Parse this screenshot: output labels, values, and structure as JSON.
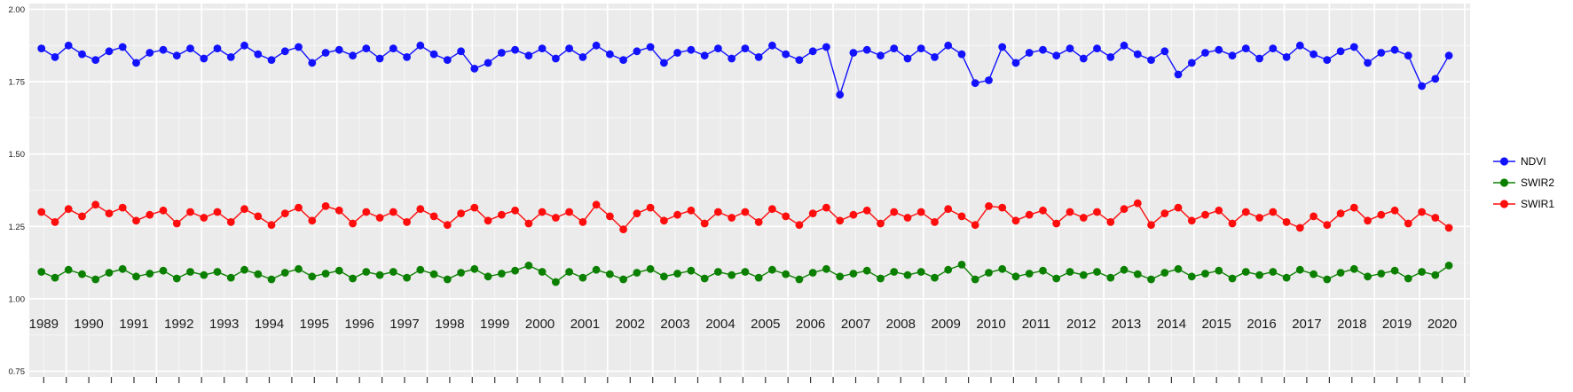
{
  "page": {
    "background": "#FFFFFF"
  },
  "chart_data": {
    "type": "scatter",
    "title": "",
    "xlabel": "",
    "ylabel": "",
    "panel_color": "#EBEBEB",
    "grid_color": "#FFFFFF",
    "axis_text_color": "#1A1A1A",
    "tick_color": "#333333",
    "x_domain": [
      1988.68,
      2020.62
    ],
    "y_domain": [
      0.73,
      2.02
    ],
    "x_ticks": [
      1989,
      1990,
      1991,
      1992,
      1993,
      1994,
      1995,
      1996,
      1997,
      1998,
      1999,
      2000,
      2001,
      2002,
      2003,
      2004,
      2005,
      2006,
      2007,
      2008,
      2009,
      2010,
      2011,
      2012,
      2013,
      2014,
      2015,
      2016,
      2017,
      2018,
      2019,
      2020
    ],
    "y_ticks": [
      {
        "label": "2.00",
        "value": 2.0
      },
      {
        "label": "1.75",
        "value": 1.75
      },
      {
        "label": "1.50",
        "value": 1.5
      },
      {
        "label": "1.25",
        "value": 1.25
      },
      {
        "label": "1.00",
        "value": 1.0
      },
      {
        "label": "0.75",
        "value": 0.75
      }
    ],
    "legend": {
      "position": "right",
      "items": [
        {
          "label": "NDVI",
          "color": "#1212FF"
        },
        {
          "label": "SWIR2",
          "color": "#0B8000"
        },
        {
          "label": "SWIR1",
          "color": "#FF0D0D"
        }
      ]
    },
    "x": [
      1988.95,
      1989.25,
      1989.55,
      1989.85,
      1990.15,
      1990.45,
      1990.75,
      1991.05,
      1991.35,
      1991.65,
      1991.95,
      1992.25,
      1992.55,
      1992.85,
      1993.15,
      1993.45,
      1993.75,
      1994.05,
      1994.35,
      1994.65,
      1994.95,
      1995.25,
      1995.55,
      1995.85,
      1996.15,
      1996.45,
      1996.75,
      1997.05,
      1997.35,
      1997.65,
      1997.95,
      1998.25,
      1998.55,
      1998.85,
      1999.15,
      1999.45,
      1999.75,
      2000.05,
      2000.35,
      2000.65,
      2000.95,
      2001.25,
      2001.55,
      2001.85,
      2002.15,
      2002.45,
      2002.75,
      2003.05,
      2003.35,
      2003.65,
      2003.95,
      2004.25,
      2004.55,
      2004.85,
      2005.15,
      2005.45,
      2005.75,
      2006.05,
      2006.35,
      2006.65,
      2006.95,
      2007.25,
      2007.55,
      2007.85,
      2008.15,
      2008.45,
      2008.75,
      2009.05,
      2009.35,
      2009.65,
      2009.95,
      2010.25,
      2010.55,
      2010.85,
      2011.15,
      2011.45,
      2011.75,
      2012.05,
      2012.35,
      2012.65,
      2012.95,
      2013.25,
      2013.55,
      2013.85,
      2014.15,
      2014.45,
      2014.75,
      2015.05,
      2015.35,
      2015.65,
      2015.95,
      2016.25,
      2016.55,
      2016.85,
      2017.15,
      2017.45,
      2017.75,
      2018.05,
      2018.35,
      2018.65,
      2018.95,
      2019.25,
      2019.55,
      2019.85,
      2020.15
    ],
    "series": [
      {
        "name": "NDVI",
        "color": "#1212FF",
        "values": [
          1.865,
          1.835,
          1.875,
          1.845,
          1.825,
          1.855,
          1.87,
          1.815,
          1.85,
          1.86,
          1.84,
          1.865,
          1.83,
          1.865,
          1.835,
          1.875,
          1.845,
          1.825,
          1.855,
          1.87,
          1.815,
          1.85,
          1.86,
          1.84,
          1.865,
          1.83,
          1.865,
          1.835,
          1.875,
          1.845,
          1.825,
          1.855,
          1.795,
          1.815,
          1.85,
          1.86,
          1.84,
          1.865,
          1.83,
          1.865,
          1.835,
          1.875,
          1.845,
          1.825,
          1.855,
          1.87,
          1.815,
          1.85,
          1.86,
          1.84,
          1.865,
          1.83,
          1.865,
          1.835,
          1.875,
          1.845,
          1.825,
          1.855,
          1.87,
          1.705,
          1.85,
          1.86,
          1.84,
          1.865,
          1.83,
          1.865,
          1.835,
          1.875,
          1.845,
          1.745,
          1.755,
          1.87,
          1.815,
          1.85,
          1.86,
          1.84,
          1.865,
          1.83,
          1.865,
          1.835,
          1.875,
          1.845,
          1.825,
          1.855,
          1.775,
          1.815,
          1.85,
          1.86,
          1.84,
          1.865,
          1.83,
          1.865,
          1.835,
          1.875,
          1.845,
          1.825,
          1.855,
          1.87,
          1.815,
          1.85,
          1.86,
          1.84,
          1.735,
          1.76,
          1.84
        ]
      },
      {
        "name": "SWIR2",
        "color": "#0B8000",
        "values": [
          1.093,
          1.073,
          1.1,
          1.085,
          1.067,
          1.09,
          1.103,
          1.077,
          1.087,
          1.097,
          1.07,
          1.093,
          1.082,
          1.093,
          1.073,
          1.1,
          1.085,
          1.067,
          1.09,
          1.103,
          1.077,
          1.087,
          1.097,
          1.07,
          1.093,
          1.082,
          1.093,
          1.073,
          1.1,
          1.085,
          1.067,
          1.09,
          1.103,
          1.077,
          1.087,
          1.097,
          1.115,
          1.093,
          1.058,
          1.093,
          1.073,
          1.1,
          1.085,
          1.067,
          1.09,
          1.103,
          1.077,
          1.087,
          1.097,
          1.07,
          1.093,
          1.082,
          1.093,
          1.073,
          1.1,
          1.085,
          1.067,
          1.09,
          1.103,
          1.077,
          1.087,
          1.097,
          1.07,
          1.093,
          1.082,
          1.093,
          1.073,
          1.1,
          1.118,
          1.067,
          1.09,
          1.103,
          1.077,
          1.087,
          1.097,
          1.07,
          1.093,
          1.082,
          1.093,
          1.073,
          1.1,
          1.085,
          1.067,
          1.09,
          1.103,
          1.077,
          1.087,
          1.097,
          1.07,
          1.093,
          1.082,
          1.093,
          1.073,
          1.1,
          1.085,
          1.067,
          1.09,
          1.103,
          1.077,
          1.087,
          1.097,
          1.07,
          1.093,
          1.082,
          1.115
        ]
      },
      {
        "name": "SWIR1",
        "color": "#FF0D0D",
        "values": [
          1.3,
          1.265,
          1.31,
          1.285,
          1.325,
          1.295,
          1.315,
          1.27,
          1.29,
          1.305,
          1.26,
          1.3,
          1.28,
          1.3,
          1.265,
          1.31,
          1.285,
          1.255,
          1.295,
          1.315,
          1.27,
          1.32,
          1.305,
          1.26,
          1.3,
          1.28,
          1.3,
          1.265,
          1.31,
          1.285,
          1.255,
          1.295,
          1.315,
          1.27,
          1.29,
          1.305,
          1.26,
          1.3,
          1.28,
          1.3,
          1.265,
          1.325,
          1.285,
          1.24,
          1.295,
          1.315,
          1.27,
          1.29,
          1.305,
          1.26,
          1.3,
          1.28,
          1.3,
          1.265,
          1.31,
          1.285,
          1.255,
          1.295,
          1.315,
          1.27,
          1.29,
          1.305,
          1.26,
          1.3,
          1.28,
          1.3,
          1.265,
          1.31,
          1.285,
          1.255,
          1.32,
          1.315,
          1.27,
          1.29,
          1.305,
          1.26,
          1.3,
          1.28,
          1.3,
          1.265,
          1.31,
          1.33,
          1.255,
          1.295,
          1.315,
          1.27,
          1.29,
          1.305,
          1.26,
          1.3,
          1.28,
          1.3,
          1.265,
          1.245,
          1.285,
          1.255,
          1.295,
          1.315,
          1.27,
          1.29,
          1.305,
          1.26,
          1.3,
          1.28,
          1.245
        ]
      }
    ]
  }
}
